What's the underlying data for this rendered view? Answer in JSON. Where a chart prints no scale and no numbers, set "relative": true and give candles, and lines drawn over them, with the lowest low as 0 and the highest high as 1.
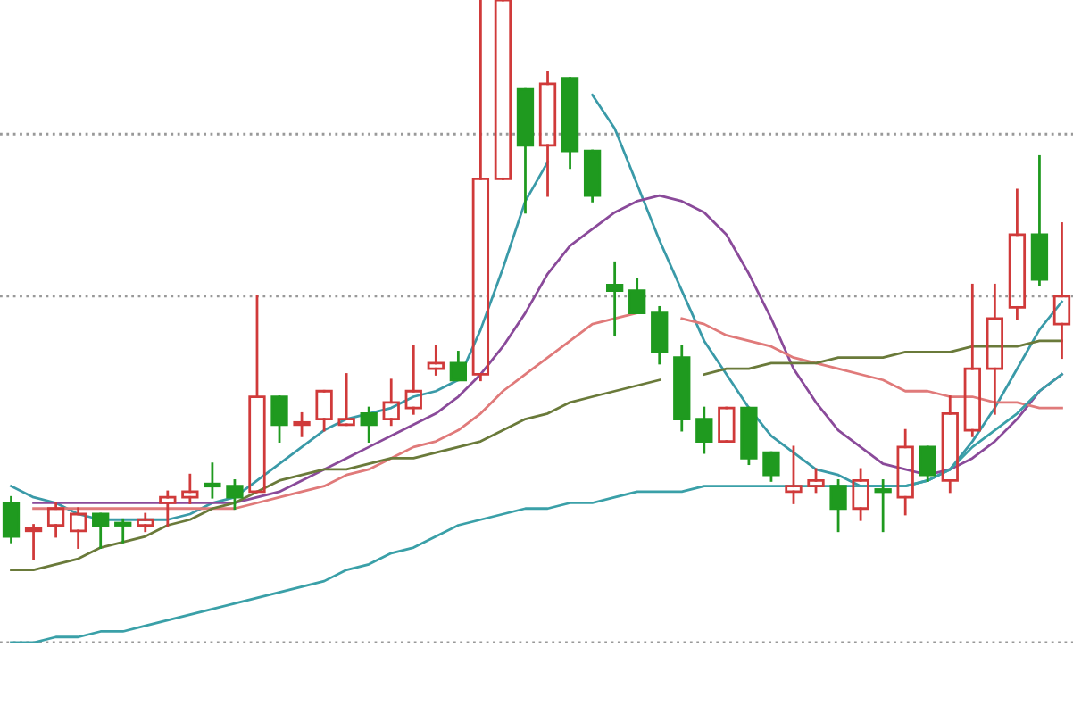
{
  "chart_data": {
    "type": "candlestick",
    "relative": true,
    "categories": [
      null,
      null,
      null,
      null,
      null,
      null,
      null,
      null,
      null,
      null,
      null,
      null,
      null,
      null,
      null,
      null,
      null,
      null,
      null,
      null,
      null,
      null,
      null,
      null,
      null,
      null,
      null,
      null,
      null,
      null,
      null,
      null,
      null,
      null,
      null,
      null,
      null,
      null,
      null,
      null,
      null,
      null,
      null,
      null,
      null,
      null,
      null,
      null
    ],
    "ohlc": [
      [
        0.1,
        0.11,
        0.03,
        0.04
      ],
      [
        0.05,
        0.06,
        0.0,
        0.05
      ],
      [
        0.06,
        0.1,
        0.04,
        0.09
      ],
      [
        0.05,
        0.09,
        0.02,
        0.08
      ],
      [
        0.08,
        0.08,
        0.02,
        0.06
      ],
      [
        0.06,
        0.07,
        0.03,
        0.06
      ],
      [
        0.06,
        0.08,
        0.05,
        0.07
      ],
      [
        0.1,
        0.12,
        0.06,
        0.11
      ],
      [
        0.11,
        0.15,
        0.1,
        0.12
      ],
      [
        0.13,
        0.17,
        0.11,
        0.13
      ],
      [
        0.13,
        0.14,
        0.09,
        0.11
      ],
      [
        0.12,
        0.47,
        0.12,
        0.29
      ],
      [
        0.29,
        0.29,
        0.21,
        0.24
      ],
      [
        0.24,
        0.26,
        0.22,
        0.24
      ],
      [
        0.25,
        0.3,
        0.23,
        0.3
      ],
      [
        0.24,
        0.33,
        0.24,
        0.25
      ],
      [
        0.26,
        0.27,
        0.21,
        0.24
      ],
      [
        0.25,
        0.32,
        0.24,
        0.28
      ],
      [
        0.27,
        0.38,
        0.26,
        0.3
      ],
      [
        0.34,
        0.38,
        0.33,
        0.35
      ],
      [
        0.35,
        0.37,
        0.32,
        0.32
      ],
      [
        0.33,
        1.0,
        0.32,
        0.68
      ],
      [
        0.68,
        1.0,
        0.68,
        1.0
      ],
      [
        0.84,
        0.84,
        0.62,
        0.74
      ],
      [
        0.74,
        0.87,
        0.65,
        0.85
      ],
      [
        0.86,
        0.86,
        0.7,
        0.73
      ],
      [
        0.73,
        0.73,
        0.64,
        0.65
      ],
      [
        0.49,
        0.53,
        0.4,
        0.48
      ],
      [
        0.48,
        0.5,
        0.44,
        0.44
      ],
      [
        0.44,
        0.45,
        0.35,
        0.37
      ],
      [
        0.36,
        0.38,
        0.23,
        0.25
      ],
      [
        0.25,
        0.27,
        0.19,
        0.21
      ],
      [
        0.21,
        0.27,
        0.21,
        0.27
      ],
      [
        0.27,
        0.27,
        0.17,
        0.18
      ],
      [
        0.19,
        0.19,
        0.14,
        0.15
      ],
      [
        0.12,
        0.2,
        0.1,
        0.13
      ],
      [
        0.13,
        0.16,
        0.12,
        0.14
      ],
      [
        0.13,
        0.14,
        0.05,
        0.09
      ],
      [
        0.09,
        0.16,
        0.07,
        0.14
      ],
      [
        0.12,
        0.14,
        0.05,
        0.12
      ],
      [
        0.11,
        0.23,
        0.08,
        0.2
      ],
      [
        0.2,
        0.2,
        0.14,
        0.15
      ],
      [
        0.14,
        0.29,
        0.12,
        0.26
      ],
      [
        0.23,
        0.49,
        0.22,
        0.34
      ],
      [
        0.34,
        0.49,
        0.26,
        0.43
      ],
      [
        0.45,
        0.66,
        0.43,
        0.58
      ],
      [
        0.58,
        0.72,
        0.49,
        0.5
      ],
      [
        0.42,
        0.6,
        0.36,
        0.47
      ]
    ],
    "colors": [
      "#1f9a1f",
      "#d03a3a",
      "#d03a3a",
      "#d03a3a",
      "#1f9a1f",
      "#1f9a1f",
      "#d03a3a",
      "#d03a3a",
      "#d03a3a",
      "#1f9a1f",
      "#1f9a1f",
      "#d03a3a",
      "#1f9a1f",
      "#d03a3a",
      "#d03a3a",
      "#d03a3a",
      "#1f9a1f",
      "#d03a3a",
      "#d03a3a",
      "#d03a3a",
      "#1f9a1f",
      "#d03a3a",
      "#d03a3a",
      "#1f9a1f",
      "#d03a3a",
      "#1f9a1f",
      "#1f9a1f",
      "#1f9a1f",
      "#1f9a1f",
      "#1f9a1f",
      "#1f9a1f",
      "#1f9a1f",
      "#d03a3a",
      "#1f9a1f",
      "#1f9a1f",
      "#d03a3a",
      "#d03a3a",
      "#1f9a1f",
      "#d03a3a",
      "#1f9a1f",
      "#d03a3a",
      "#1f9a1f",
      "#d03a3a",
      "#d03a3a",
      "#d03a3a",
      "#d03a3a",
      "#1f9a1f",
      "#d03a3a"
    ],
    "series": [
      {
        "type": "line",
        "color": "#3a9aa8",
        "values": [
          0.13,
          0.11,
          0.1,
          0.08,
          0.07,
          0.07,
          0.07,
          0.07,
          0.08,
          0.1,
          0.11,
          0.14,
          0.17,
          0.2,
          0.23,
          0.25,
          0.26,
          0.27,
          0.29,
          0.3,
          0.32,
          0.41,
          0.52,
          0.64,
          0.71,
          null,
          0.83,
          0.77,
          0.67,
          0.57,
          0.48,
          0.39,
          0.33,
          0.27,
          0.22,
          0.19,
          0.16,
          0.15,
          0.13,
          0.13,
          0.13,
          0.14,
          0.16,
          0.21,
          0.27,
          0.34,
          0.41,
          0.46
        ]
      },
      {
        "type": "line",
        "color": "#8a4a9a",
        "values": [
          null,
          0.1,
          0.1,
          0.1,
          0.1,
          0.1,
          0.1,
          0.1,
          0.1,
          0.1,
          0.1,
          0.11,
          0.12,
          0.14,
          0.16,
          0.18,
          0.2,
          0.22,
          0.24,
          0.26,
          0.29,
          0.33,
          0.38,
          0.44,
          0.51,
          0.56,
          0.59,
          0.62,
          0.64,
          0.65,
          0.64,
          0.62,
          0.58,
          0.51,
          0.43,
          0.34,
          0.28,
          0.23,
          0.2,
          0.17,
          0.16,
          0.15,
          0.16,
          0.18,
          0.21,
          0.25,
          0.3,
          0.33
        ]
      },
      {
        "type": "line",
        "color": "#e07a7a",
        "values": [
          null,
          0.09,
          0.09,
          0.09,
          0.09,
          0.09,
          0.09,
          0.09,
          0.09,
          0.09,
          0.09,
          0.1,
          0.11,
          0.12,
          0.13,
          0.15,
          0.16,
          0.18,
          0.2,
          0.21,
          0.23,
          0.26,
          0.3,
          0.33,
          0.36,
          0.39,
          0.42,
          0.43,
          0.44,
          null,
          0.43,
          0.42,
          0.4,
          0.39,
          0.38,
          0.36,
          0.35,
          0.34,
          0.33,
          0.32,
          0.3,
          0.3,
          0.29,
          0.29,
          0.28,
          0.28,
          0.27,
          0.27
        ]
      },
      {
        "type": "line",
        "color": "#6a7a3a",
        "values": [
          -0.02,
          -0.02,
          -0.01,
          0.0,
          0.02,
          0.03,
          0.04,
          0.06,
          0.07,
          0.09,
          0.1,
          0.12,
          0.14,
          0.15,
          0.16,
          0.16,
          0.17,
          0.18,
          0.18,
          0.19,
          0.2,
          0.21,
          0.23,
          0.25,
          0.26,
          0.28,
          0.29,
          0.3,
          0.31,
          0.32,
          null,
          0.33,
          0.34,
          0.34,
          0.35,
          0.35,
          0.35,
          0.36,
          0.36,
          0.36,
          0.37,
          0.37,
          0.37,
          0.38,
          0.38,
          0.38,
          0.39,
          0.39
        ]
      },
      {
        "type": "line",
        "color": "#3aa0a8",
        "values": [
          -0.15,
          -0.15,
          -0.14,
          -0.14,
          -0.13,
          -0.13,
          -0.12,
          -0.11,
          -0.1,
          -0.09,
          -0.08,
          -0.07,
          -0.06,
          -0.05,
          -0.04,
          -0.02,
          -0.01,
          0.01,
          0.02,
          0.04,
          0.06,
          0.07,
          0.08,
          0.09,
          0.09,
          0.1,
          0.1,
          0.11,
          0.12,
          0.12,
          0.12,
          0.13,
          0.13,
          0.13,
          0.13,
          0.13,
          0.13,
          0.13,
          0.13,
          0.13,
          0.13,
          0.14,
          0.16,
          0.2,
          0.23,
          0.26,
          0.3,
          0.33
        ]
      }
    ],
    "ref_lines": [
      {
        "axis": "y",
        "value": 0.76,
        "color": "#999999",
        "line_style": "dotted"
      },
      {
        "axis": "y",
        "value": 0.47,
        "color": "#999999",
        "line_style": "dotted"
      },
      {
        "axis": "y",
        "value": -0.15,
        "color": "#999999",
        "line_style": "dotted"
      }
    ],
    "legend": false
  }
}
